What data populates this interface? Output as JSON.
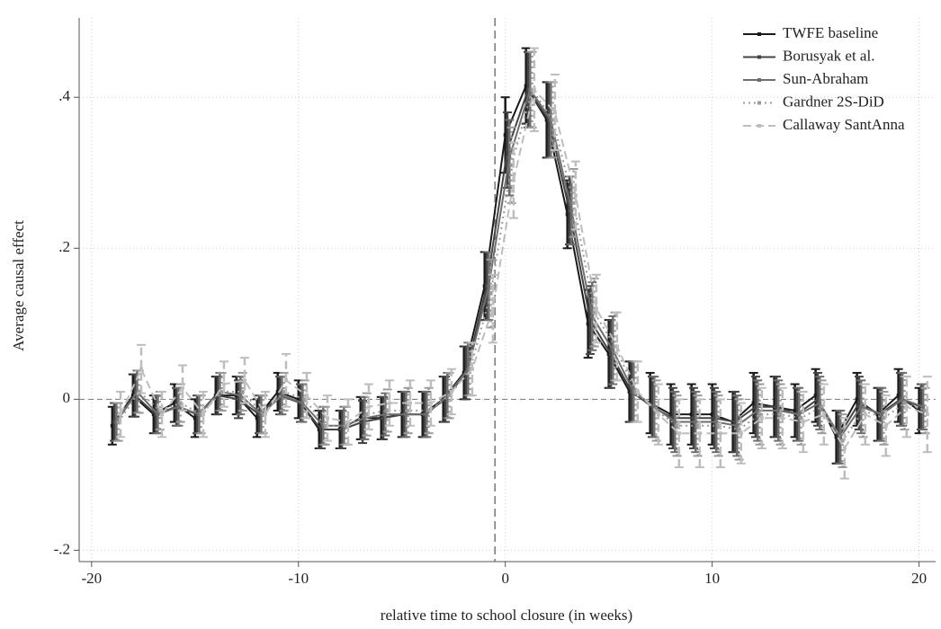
{
  "chart_data": {
    "type": "event_study",
    "xlabel": "relative time to school closure (in weeks)",
    "ylabel": "Average causal effect",
    "x": [
      -19,
      -18,
      -17,
      -16,
      -15,
      -14,
      -13,
      -12,
      -11,
      -10,
      -9,
      -8,
      -7,
      -6,
      -5,
      -4,
      -3,
      -2,
      -1,
      0,
      1,
      2,
      3,
      4,
      5,
      6,
      7,
      8,
      9,
      10,
      11,
      12,
      13,
      14,
      15,
      16,
      17,
      18,
      19,
      20
    ],
    "xlim": [
      -20.6,
      20.8
    ],
    "xticks": [
      -20,
      -10,
      0,
      10,
      20
    ],
    "ylim": [
      -0.215,
      0.505
    ],
    "yticks": [
      {
        "value": -0.2,
        "label": "-.2"
      },
      {
        "value": 0,
        "label": "0"
      },
      {
        "value": 0.2,
        "label": ".2"
      },
      {
        "value": 0.4,
        "label": ".4"
      }
    ],
    "hline": 0,
    "vline": -0.5,
    "grid": true,
    "legend": "top right",
    "series": [
      {
        "name": "TWFE baseline",
        "color": "#1a1a1a",
        "style": "solid",
        "values": [
          -0.035,
          0.005,
          -0.02,
          -0.005,
          -0.025,
          0.005,
          0.005,
          -0.025,
          0.01,
          0.0,
          -0.04,
          -0.04,
          -0.025,
          -0.025,
          -0.02,
          -0.02,
          0.0,
          0.035,
          0.15,
          0.35,
          0.415,
          0.37,
          0.245,
          0.1,
          0.06,
          0.01,
          -0.005,
          -0.02,
          -0.02,
          -0.02,
          -0.03,
          -0.005,
          -0.01,
          -0.015,
          0.005,
          -0.05,
          0.0,
          -0.02,
          0.005,
          -0.015
        ],
        "errors": [
          0.025,
          0.028,
          0.025,
          0.025,
          0.025,
          0.025,
          0.025,
          0.025,
          0.025,
          0.025,
          0.025,
          0.025,
          0.028,
          0.028,
          0.03,
          0.03,
          0.03,
          0.035,
          0.045,
          0.05,
          0.05,
          0.05,
          0.045,
          0.045,
          0.045,
          0.04,
          0.04,
          0.04,
          0.04,
          0.04,
          0.04,
          0.04,
          0.04,
          0.035,
          0.035,
          0.035,
          0.035,
          0.035,
          0.035,
          0.03
        ]
      },
      {
        "name": "Borusyak et al.",
        "color": "#444444",
        "style": "solid",
        "values": [
          -0.03,
          0.005,
          -0.02,
          -0.01,
          -0.02,
          0.005,
          0.0,
          -0.02,
          0.005,
          -0.005,
          -0.04,
          -0.04,
          -0.03,
          -0.025,
          -0.02,
          -0.02,
          0.0,
          0.035,
          0.15,
          0.33,
          0.41,
          0.37,
          0.25,
          0.105,
          0.06,
          0.01,
          -0.01,
          -0.025,
          -0.025,
          -0.025,
          -0.03,
          -0.01,
          -0.01,
          -0.02,
          0.0,
          -0.05,
          -0.005,
          -0.02,
          0.0,
          -0.01
        ],
        "errors": [
          0.025,
          0.028,
          0.025,
          0.025,
          0.025,
          0.025,
          0.025,
          0.025,
          0.025,
          0.025,
          0.025,
          0.025,
          0.028,
          0.028,
          0.03,
          0.03,
          0.03,
          0.035,
          0.045,
          0.05,
          0.05,
          0.05,
          0.045,
          0.045,
          0.045,
          0.04,
          0.04,
          0.04,
          0.04,
          0.04,
          0.04,
          0.04,
          0.04,
          0.035,
          0.035,
          0.035,
          0.035,
          0.035,
          0.035,
          0.03
        ]
      },
      {
        "name": "Sun-Abraham",
        "color": "#6e6e6e",
        "style": "solid",
        "values": [
          -0.03,
          0.01,
          -0.02,
          -0.01,
          -0.02,
          0.01,
          0.005,
          -0.02,
          0.005,
          -0.005,
          -0.035,
          -0.035,
          -0.025,
          -0.02,
          -0.02,
          -0.02,
          0.005,
          0.04,
          0.15,
          0.32,
          0.41,
          0.37,
          0.25,
          0.11,
          0.065,
          0.01,
          -0.01,
          -0.03,
          -0.03,
          -0.03,
          -0.035,
          -0.015,
          -0.015,
          -0.02,
          -0.005,
          -0.05,
          -0.01,
          -0.02,
          0.0,
          -0.01
        ],
        "errors": [
          0.025,
          0.028,
          0.025,
          0.025,
          0.025,
          0.025,
          0.025,
          0.025,
          0.025,
          0.025,
          0.025,
          0.025,
          0.028,
          0.028,
          0.03,
          0.03,
          0.03,
          0.035,
          0.045,
          0.05,
          0.05,
          0.05,
          0.045,
          0.045,
          0.045,
          0.04,
          0.04,
          0.04,
          0.04,
          0.04,
          0.04,
          0.04,
          0.04,
          0.035,
          0.035,
          0.035,
          0.035,
          0.035,
          0.035,
          0.03
        ]
      },
      {
        "name": "Gardner 2S-DiD",
        "color": "#9a9a9a",
        "style": "dotted",
        "values": [
          -0.03,
          0.01,
          -0.015,
          -0.005,
          -0.02,
          0.01,
          0.01,
          -0.02,
          0.01,
          0.0,
          -0.035,
          -0.035,
          -0.02,
          -0.015,
          -0.015,
          -0.015,
          0.005,
          0.04,
          0.14,
          0.31,
          0.41,
          0.37,
          0.26,
          0.115,
          0.07,
          0.01,
          -0.015,
          -0.035,
          -0.035,
          -0.035,
          -0.04,
          -0.02,
          -0.02,
          -0.025,
          -0.01,
          -0.055,
          -0.015,
          -0.025,
          -0.005,
          -0.015
        ],
        "errors": [
          0.025,
          0.028,
          0.025,
          0.025,
          0.025,
          0.025,
          0.025,
          0.025,
          0.025,
          0.025,
          0.025,
          0.025,
          0.028,
          0.028,
          0.03,
          0.03,
          0.03,
          0.035,
          0.045,
          0.05,
          0.05,
          0.05,
          0.045,
          0.045,
          0.045,
          0.04,
          0.04,
          0.04,
          0.04,
          0.04,
          0.04,
          0.04,
          0.04,
          0.035,
          0.035,
          0.035,
          0.035,
          0.035,
          0.035,
          0.03
        ]
      },
      {
        "name": "Callaway SantAnna",
        "color": "#bdbdbd",
        "style": "dashed",
        "values": [
          -0.02,
          0.04,
          -0.02,
          0.015,
          -0.02,
          0.02,
          0.025,
          -0.02,
          0.025,
          0.005,
          -0.025,
          -0.03,
          -0.01,
          -0.005,
          -0.005,
          -0.005,
          0.01,
          0.04,
          0.12,
          0.29,
          0.41,
          0.38,
          0.27,
          0.12,
          0.07,
          0.01,
          -0.02,
          -0.045,
          -0.045,
          -0.045,
          -0.045,
          -0.025,
          -0.025,
          -0.03,
          -0.02,
          -0.065,
          -0.02,
          -0.035,
          -0.01,
          -0.02
        ],
        "errors": [
          0.03,
          0.032,
          0.03,
          0.03,
          0.03,
          0.03,
          0.03,
          0.03,
          0.035,
          0.03,
          0.03,
          0.03,
          0.03,
          0.03,
          0.03,
          0.03,
          0.03,
          0.035,
          0.045,
          0.05,
          0.055,
          0.05,
          0.045,
          0.045,
          0.045,
          0.04,
          0.04,
          0.045,
          0.045,
          0.045,
          0.04,
          0.04,
          0.04,
          0.04,
          0.04,
          0.04,
          0.04,
          0.04,
          0.04,
          0.05
        ]
      }
    ]
  }
}
